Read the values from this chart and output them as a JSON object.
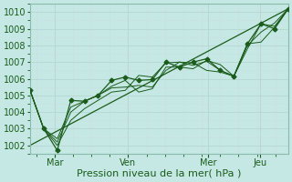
{
  "xlabel": "Pression niveau de la mer( hPa )",
  "bg_color": "#c5e8e5",
  "grid_major_color": "#aad4d0",
  "grid_minor_color": "#c0e0dc",
  "line_color": "#1a5c1a",
  "spine_color": "#8abaaa",
  "ylim": [
    1001.5,
    1010.5
  ],
  "yticks": [
    1002,
    1003,
    1004,
    1005,
    1006,
    1007,
    1008,
    1009,
    1010
  ],
  "xtick_labels": [
    "Mar",
    "Ven",
    "Mer",
    "Jeu"
  ],
  "xtick_positions": [
    0.095,
    0.38,
    0.69,
    0.89
  ],
  "num_points": 20,
  "straight_line": [
    [
      0,
      1002.0
    ],
    [
      1,
      1010.2
    ]
  ],
  "series": [
    [
      1005.3,
      1003.0,
      1001.7,
      1004.7,
      1004.65,
      1005.0,
      1005.9,
      1006.1,
      1005.9,
      1005.95,
      1007.0,
      1006.7,
      1007.0,
      1007.2,
      1006.5,
      1006.15,
      1008.1,
      1009.3,
      1009.0,
      1010.2
    ],
    [
      1005.3,
      1003.0,
      1002.2,
      1004.0,
      1004.65,
      1005.0,
      1005.55,
      1005.9,
      1005.2,
      1005.4,
      1006.7,
      1006.7,
      1006.6,
      1007.1,
      1006.85,
      1006.15,
      1008.0,
      1008.8,
      1009.35,
      1010.2
    ],
    [
      1005.3,
      1003.0,
      1002.4,
      1004.3,
      1004.65,
      1005.0,
      1005.45,
      1005.5,
      1005.6,
      1005.5,
      1006.5,
      1007.0,
      1006.8,
      1007.05,
      1006.5,
      1006.15,
      1007.8,
      1009.3,
      1009.15,
      1010.2
    ],
    [
      1005.3,
      1003.0,
      1002.0,
      1003.5,
      1004.2,
      1004.7,
      1005.2,
      1005.3,
      1006.2,
      1006.1,
      1006.95,
      1007.0,
      1006.95,
      1006.5,
      1006.4,
      1006.15,
      1008.1,
      1008.2,
      1009.1,
      1010.2
    ]
  ],
  "main_series_idx": 0,
  "marker": "D",
  "marker_size": 2.5,
  "linewidth": 0.9,
  "tick_fontsize": 7,
  "xlabel_fontsize": 8
}
